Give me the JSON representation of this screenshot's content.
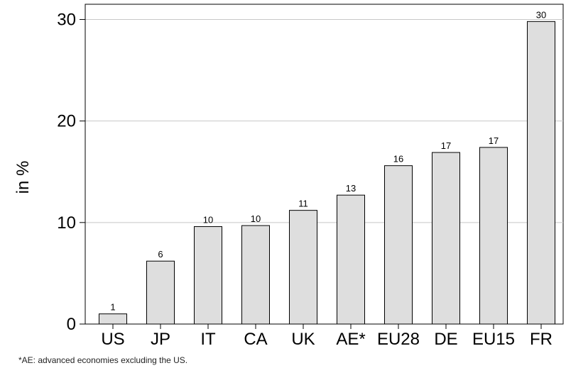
{
  "chart_data": {
    "type": "bar",
    "categories": [
      "US",
      "JP",
      "IT",
      "CA",
      "UK",
      "AE*",
      "EU28",
      "DE",
      "EU15",
      "FR"
    ],
    "values": [
      1,
      6.2,
      9.6,
      9.7,
      11.2,
      12.7,
      15.6,
      16.9,
      17.4,
      29.8
    ],
    "data_labels": [
      "1",
      "6",
      "10",
      "10",
      "11",
      "13",
      "16",
      "17",
      "17",
      "30"
    ],
    "ylabel": "in %",
    "xlabel": "",
    "ylim": [
      0,
      31.5
    ],
    "yticks": [
      0,
      10,
      20,
      30
    ],
    "grid": true,
    "bar_color": "#dedede",
    "bar_edge_color": "#000000",
    "grid_color": "#c8c8c8"
  },
  "footnote": "*AE: advanced economies excluding the US."
}
